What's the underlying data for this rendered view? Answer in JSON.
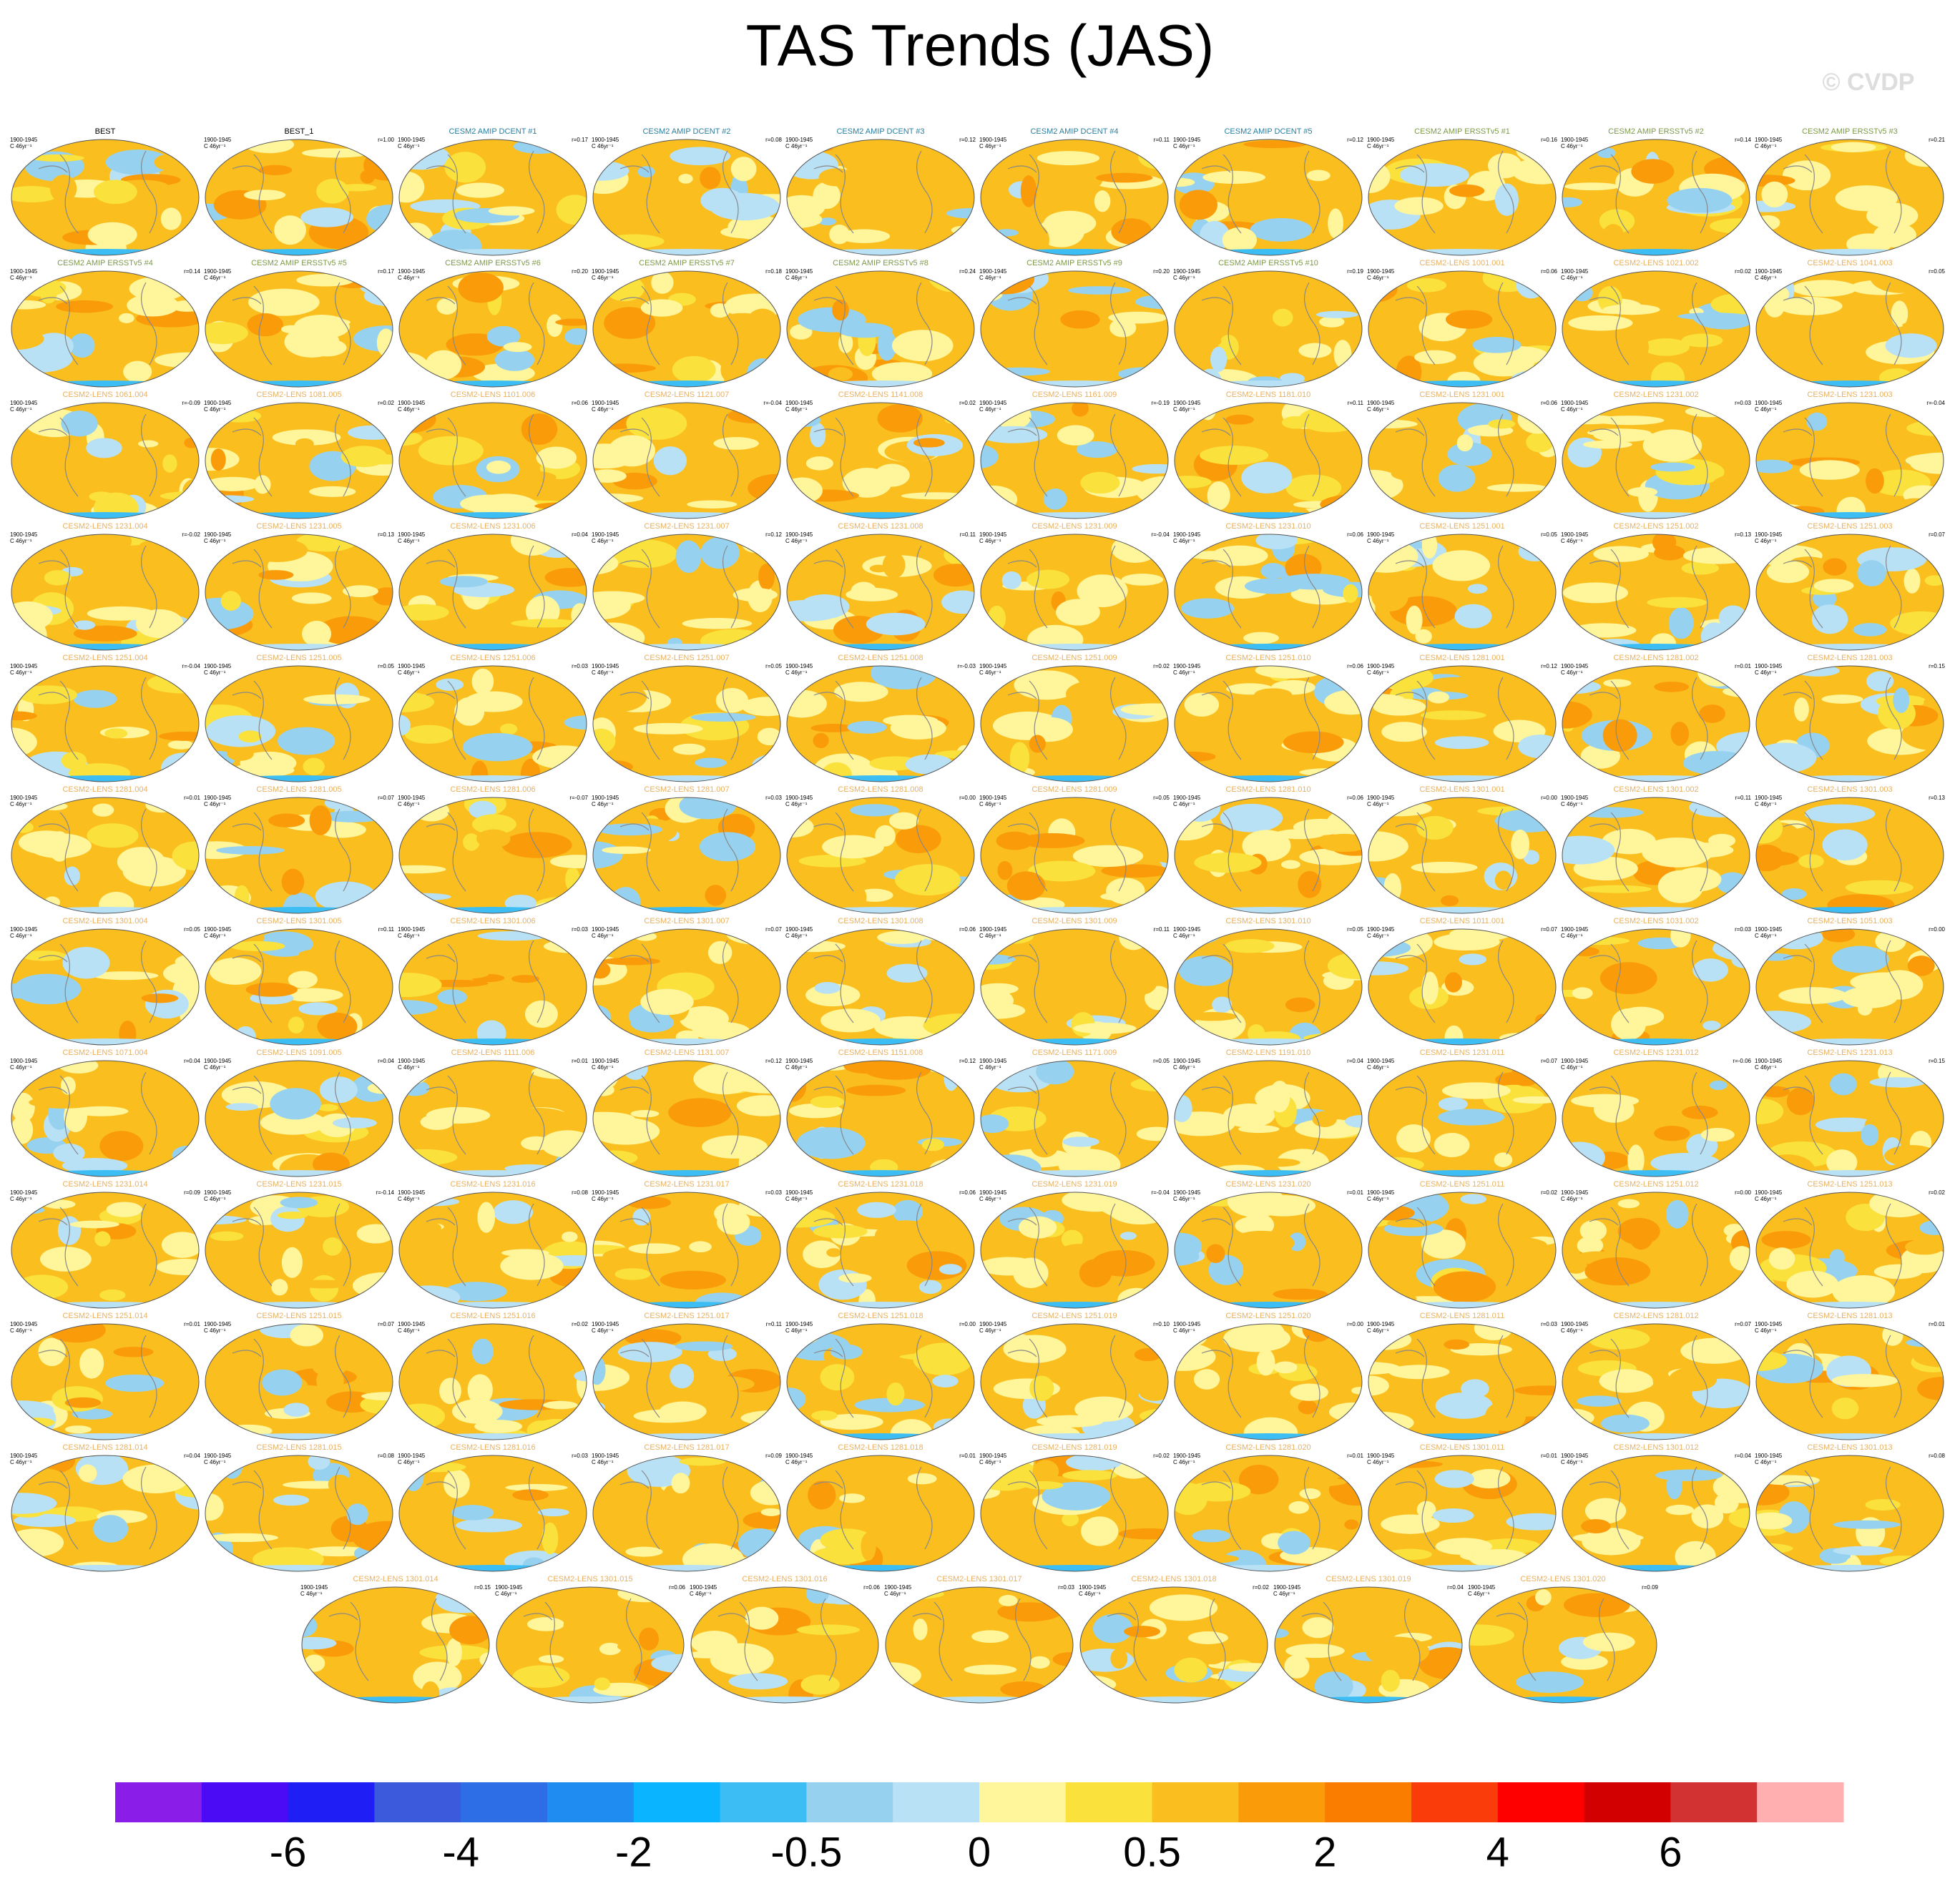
{
  "title": "TAS Trends (JAS)",
  "credit": "© CVDP",
  "period": "1900-1945",
  "units": "C 46yr⁻¹",
  "panels": [
    {
      "title": "BEST",
      "color": "#000000"
    },
    {
      "title": "BEST_1",
      "r": "r=1.00",
      "color": "#000000"
    },
    {
      "title": "CESM2 AMIP DCENT #1",
      "r": "r=0.17",
      "color": "#2a7fa0"
    },
    {
      "title": "CESM2 AMIP DCENT #2",
      "r": "r=0.08",
      "color": "#2a7fa0"
    },
    {
      "title": "CESM2 AMIP DCENT #3",
      "r": "r=0.12",
      "color": "#2a7fa0"
    },
    {
      "title": "CESM2 AMIP DCENT #4",
      "r": "r=0.11",
      "color": "#2a7fa0"
    },
    {
      "title": "CESM2 AMIP DCENT #5",
      "r": "r=0.12",
      "color": "#2a7fa0"
    },
    {
      "title": "CESM2 AMIP ERSSTv5 #1",
      "r": "r=0.16",
      "color": "#7d9a4a"
    },
    {
      "title": "CESM2 AMIP ERSSTv5 #2",
      "r": "r=0.14",
      "color": "#7d9a4a"
    },
    {
      "title": "CESM2 AMIP ERSSTv5 #3",
      "r": "r=0.21",
      "color": "#7d9a4a"
    },
    {
      "title": "CESM2 AMIP ERSSTv5 #4",
      "r": "r=0.14",
      "color": "#7d9a4a"
    },
    {
      "title": "CESM2 AMIP ERSSTv5 #5",
      "r": "r=0.17",
      "color": "#7d9a4a"
    },
    {
      "title": "CESM2 AMIP ERSSTv5 #6",
      "r": "r=0.20",
      "color": "#7d9a4a"
    },
    {
      "title": "CESM2 AMIP ERSSTv5 #7",
      "r": "r=0.18",
      "color": "#7d9a4a"
    },
    {
      "title": "CESM2 AMIP ERSSTv5 #8",
      "r": "r=0.24",
      "color": "#7d9a4a"
    },
    {
      "title": "CESM2 AMIP ERSSTv5 #9",
      "r": "r=0.20",
      "color": "#7d9a4a"
    },
    {
      "title": "CESM2 AMIP ERSSTv5 #10",
      "r": "r=0.19",
      "color": "#7d9a4a"
    },
    {
      "title": "CESM2-LENS 1001.001",
      "r": "r=0.06",
      "color": "#e8b060"
    },
    {
      "title": "CESM2-LENS 1021.002",
      "r": "r=0.02",
      "color": "#e8b060"
    },
    {
      "title": "CESM2-LENS 1041.003",
      "r": "r=0.05",
      "color": "#e8b060"
    },
    {
      "title": "CESM2-LENS 1061.004",
      "r": "r=-0.09",
      "color": "#e8b060"
    },
    {
      "title": "CESM2-LENS 1081.005",
      "r": "r=0.02",
      "color": "#e8b060"
    },
    {
      "title": "CESM2-LENS 1101.006",
      "r": "r=0.06",
      "color": "#e8b060"
    },
    {
      "title": "CESM2-LENS 1121.007",
      "r": "r=-0.04",
      "color": "#e8b060"
    },
    {
      "title": "CESM2-LENS 1141.008",
      "r": "r=0.02",
      "color": "#e8b060"
    },
    {
      "title": "CESM2-LENS 1161.009",
      "r": "r=-0.19",
      "color": "#e8b060"
    },
    {
      "title": "CESM2-LENS 1181.010",
      "r": "r=0.11",
      "color": "#e8b060"
    },
    {
      "title": "CESM2-LENS 1231.001",
      "r": "r=0.06",
      "color": "#e8b060"
    },
    {
      "title": "CESM2-LENS 1231.002",
      "r": "r=0.03",
      "color": "#e8b060"
    },
    {
      "title": "CESM2-LENS 1231.003",
      "r": "r=-0.04",
      "color": "#e8b060"
    },
    {
      "title": "CESM2-LENS 1231.004",
      "r": "r=-0.02",
      "color": "#e8b060"
    },
    {
      "title": "CESM2-LENS 1231.005",
      "r": "r=0.13",
      "color": "#e8b060"
    },
    {
      "title": "CESM2-LENS 1231.006",
      "r": "r=0.04",
      "color": "#e8b060"
    },
    {
      "title": "CESM2-LENS 1231.007",
      "r": "r=0.12",
      "color": "#e8b060"
    },
    {
      "title": "CESM2-LENS 1231.008",
      "r": "r=0.11",
      "color": "#e8b060"
    },
    {
      "title": "CESM2-LENS 1231.009",
      "r": "r=-0.04",
      "color": "#e8b060"
    },
    {
      "title": "CESM2-LENS 1231.010",
      "r": "r=0.06",
      "color": "#e8b060"
    },
    {
      "title": "CESM2-LENS 1251.001",
      "r": "r=0.05",
      "color": "#e8b060"
    },
    {
      "title": "CESM2-LENS 1251.002",
      "r": "r=0.13",
      "color": "#e8b060"
    },
    {
      "title": "CESM2-LENS 1251.003",
      "r": "r=0.07",
      "color": "#e8b060"
    },
    {
      "title": "CESM2-LENS 1251.004",
      "r": "r=-0.04",
      "color": "#e8b060"
    },
    {
      "title": "CESM2-LENS 1251.005",
      "r": "r=0.05",
      "color": "#e8b060"
    },
    {
      "title": "CESM2-LENS 1251.006",
      "r": "r=0.03",
      "color": "#e8b060"
    },
    {
      "title": "CESM2-LENS 1251.007",
      "r": "r=0.05",
      "color": "#e8b060"
    },
    {
      "title": "CESM2-LENS 1251.008",
      "r": "r=-0.03",
      "color": "#e8b060"
    },
    {
      "title": "CESM2-LENS 1251.009",
      "r": "r=0.02",
      "color": "#e8b060"
    },
    {
      "title": "CESM2-LENS 1251.010",
      "r": "r=0.06",
      "color": "#e8b060"
    },
    {
      "title": "CESM2-LENS 1281.001",
      "r": "r=0.12",
      "color": "#e8b060"
    },
    {
      "title": "CESM2-LENS 1281.002",
      "r": "r=0.01",
      "color": "#e8b060"
    },
    {
      "title": "CESM2-LENS 1281.003",
      "r": "r=0.15",
      "color": "#e8b060"
    },
    {
      "title": "CESM2-LENS 1281.004",
      "r": "r=0.01",
      "color": "#e8b060"
    },
    {
      "title": "CESM2-LENS 1281.005",
      "r": "r=0.07",
      "color": "#e8b060"
    },
    {
      "title": "CESM2-LENS 1281.006",
      "r": "r=-0.07",
      "color": "#e8b060"
    },
    {
      "title": "CESM2-LENS 1281.007",
      "r": "r=0.03",
      "color": "#e8b060"
    },
    {
      "title": "CESM2-LENS 1281.008",
      "r": "r=0.00",
      "color": "#e8b060"
    },
    {
      "title": "CESM2-LENS 1281.009",
      "r": "r=0.05",
      "color": "#e8b060"
    },
    {
      "title": "CESM2-LENS 1281.010",
      "r": "r=0.06",
      "color": "#e8b060"
    },
    {
      "title": "CESM2-LENS 1301.001",
      "r": "r=0.00",
      "color": "#e8b060"
    },
    {
      "title": "CESM2-LENS 1301.002",
      "r": "r=0.11",
      "color": "#e8b060"
    },
    {
      "title": "CESM2-LENS 1301.003",
      "r": "r=0.13",
      "color": "#e8b060"
    },
    {
      "title": "CESM2-LENS 1301.004",
      "r": "r=0.05",
      "color": "#e8b060"
    },
    {
      "title": "CESM2-LENS 1301.005",
      "r": "r=0.11",
      "color": "#e8b060"
    },
    {
      "title": "CESM2-LENS 1301.006",
      "r": "r=0.03",
      "color": "#e8b060"
    },
    {
      "title": "CESM2-LENS 1301.007",
      "r": "r=0.07",
      "color": "#e8b060"
    },
    {
      "title": "CESM2-LENS 1301.008",
      "r": "r=0.06",
      "color": "#e8b060"
    },
    {
      "title": "CESM2-LENS 1301.009",
      "r": "r=0.11",
      "color": "#e8b060"
    },
    {
      "title": "CESM2-LENS 1301.010",
      "r": "r=0.05",
      "color": "#e8b060"
    },
    {
      "title": "CESM2-LENS 1011.001",
      "r": "r=0.07",
      "color": "#e8b060"
    },
    {
      "title": "CESM2-LENS 1031.002",
      "r": "r=0.03",
      "color": "#e8b060"
    },
    {
      "title": "CESM2-LENS 1051.003",
      "r": "r=0.00",
      "color": "#e8b060"
    },
    {
      "title": "CESM2-LENS 1071.004",
      "r": "r=0.04",
      "color": "#e8b060"
    },
    {
      "title": "CESM2-LENS 1091.005",
      "r": "r=0.04",
      "color": "#e8b060"
    },
    {
      "title": "CESM2-LENS 1111.006",
      "r": "r=0.01",
      "color": "#e8b060"
    },
    {
      "title": "CESM2-LENS 1131.007",
      "r": "r=0.12",
      "color": "#e8b060"
    },
    {
      "title": "CESM2-LENS 1151.008",
      "r": "r=0.12",
      "color": "#e8b060"
    },
    {
      "title": "CESM2-LENS 1171.009",
      "r": "r=0.05",
      "color": "#e8b060"
    },
    {
      "title": "CESM2-LENS 1191.010",
      "r": "r=0.04",
      "color": "#e8b060"
    },
    {
      "title": "CESM2-LENS 1231.011",
      "r": "r=0.07",
      "color": "#e8b060"
    },
    {
      "title": "CESM2-LENS 1231.012",
      "r": "r=-0.06",
      "color": "#e8b060"
    },
    {
      "title": "CESM2-LENS 1231.013",
      "r": "r=0.15",
      "color": "#e8b060"
    },
    {
      "title": "CESM2-LENS 1231.014",
      "r": "r=0.09",
      "color": "#e8b060"
    },
    {
      "title": "CESM2-LENS 1231.015",
      "r": "r=-0.14",
      "color": "#e8b060"
    },
    {
      "title": "CESM2-LENS 1231.016",
      "r": "r=0.08",
      "color": "#e8b060"
    },
    {
      "title": "CESM2-LENS 1231.017",
      "r": "r=0.03",
      "color": "#e8b060"
    },
    {
      "title": "CESM2-LENS 1231.018",
      "r": "r=0.06",
      "color": "#e8b060"
    },
    {
      "title": "CESM2-LENS 1231.019",
      "r": "r=-0.04",
      "color": "#e8b060"
    },
    {
      "title": "CESM2-LENS 1231.020",
      "r": "r=0.01",
      "color": "#e8b060"
    },
    {
      "title": "CESM2-LENS 1251.011",
      "r": "r=0.02",
      "color": "#e8b060"
    },
    {
      "title": "CESM2-LENS 1251.012",
      "r": "r=0.00",
      "color": "#e8b060"
    },
    {
      "title": "CESM2-LENS 1251.013",
      "r": "r=0.02",
      "color": "#e8b060"
    },
    {
      "title": "CESM2-LENS 1251.014",
      "r": "r=0.01",
      "color": "#e8b060"
    },
    {
      "title": "CESM2-LENS 1251.015",
      "r": "r=0.07",
      "color": "#e8b060"
    },
    {
      "title": "CESM2-LENS 1251.016",
      "r": "r=0.02",
      "color": "#e8b060"
    },
    {
      "title": "CESM2-LENS 1251.017",
      "r": "r=0.11",
      "color": "#e8b060"
    },
    {
      "title": "CESM2-LENS 1251.018",
      "r": "r=0.00",
      "color": "#e8b060"
    },
    {
      "title": "CESM2-LENS 1251.019",
      "r": "r=0.10",
      "color": "#e8b060"
    },
    {
      "title": "CESM2-LENS 1251.020",
      "r": "r=0.00",
      "color": "#e8b060"
    },
    {
      "title": "CESM2-LENS 1281.011",
      "r": "r=0.03",
      "color": "#e8b060"
    },
    {
      "title": "CESM2-LENS 1281.012",
      "r": "r=0.07",
      "color": "#e8b060"
    },
    {
      "title": "CESM2-LENS 1281.013",
      "r": "r=0.01",
      "color": "#e8b060"
    },
    {
      "title": "CESM2-LENS 1281.014",
      "r": "r=0.04",
      "color": "#e8b060"
    },
    {
      "title": "CESM2-LENS 1281.015",
      "r": "r=0.08",
      "color": "#e8b060"
    },
    {
      "title": "CESM2-LENS 1281.016",
      "r": "r=0.03",
      "color": "#e8b060"
    },
    {
      "title": "CESM2-LENS 1281.017",
      "r": "r=0.09",
      "color": "#e8b060"
    },
    {
      "title": "CESM2-LENS 1281.018",
      "r": "r=0.01",
      "color": "#e8b060"
    },
    {
      "title": "CESM2-LENS 1281.019",
      "r": "r=0.02",
      "color": "#e8b060"
    },
    {
      "title": "CESM2-LENS 1281.020",
      "r": "r=0.01",
      "color": "#e8b060"
    },
    {
      "title": "CESM2-LENS 1301.011",
      "r": "r=0.01",
      "color": "#e8b060"
    },
    {
      "title": "CESM2-LENS 1301.012",
      "r": "r=0.04",
      "color": "#e8b060"
    },
    {
      "title": "CESM2-LENS 1301.013",
      "r": "r=0.08",
      "color": "#e8b060"
    },
    {
      "title": "CESM2-LENS 1301.014",
      "r": "r=0.15",
      "color": "#e8b060"
    },
    {
      "title": "CESM2-LENS 1301.015",
      "r": "r=0.06",
      "color": "#e8b060"
    },
    {
      "title": "CESM2-LENS 1301.016",
      "r": "r=0.06",
      "color": "#e8b060"
    },
    {
      "title": "CESM2-LENS 1301.017",
      "r": "r=0.03",
      "color": "#e8b060"
    },
    {
      "title": "CESM2-LENS 1301.018",
      "r": "r=0.02",
      "color": "#e8b060"
    },
    {
      "title": "CESM2-LENS 1301.019",
      "r": "r=0.04",
      "color": "#e8b060"
    },
    {
      "title": "CESM2-LENS 1301.020",
      "r": "r=0.09",
      "color": "#e8b060"
    }
  ],
  "colorbar": {
    "colors": [
      "#8a1ee8",
      "#4b0cf5",
      "#1e1ef5",
      "#3c5adc",
      "#2d6ee6",
      "#1e8cf0",
      "#0ab4ff",
      "#3cbef5",
      "#96d2f0",
      "#b9e1f5",
      "#fff59b",
      "#fae13c",
      "#fabe1e",
      "#fa9b0a",
      "#fa7d00",
      "#fa3c0a",
      "#ff0000",
      "#d20000",
      "#d23232",
      "#ffafaf"
    ],
    "labels": [
      "-6",
      "-4",
      "-2",
      "-0.5",
      "0",
      "0.5",
      "2",
      "4",
      "6"
    ]
  }
}
